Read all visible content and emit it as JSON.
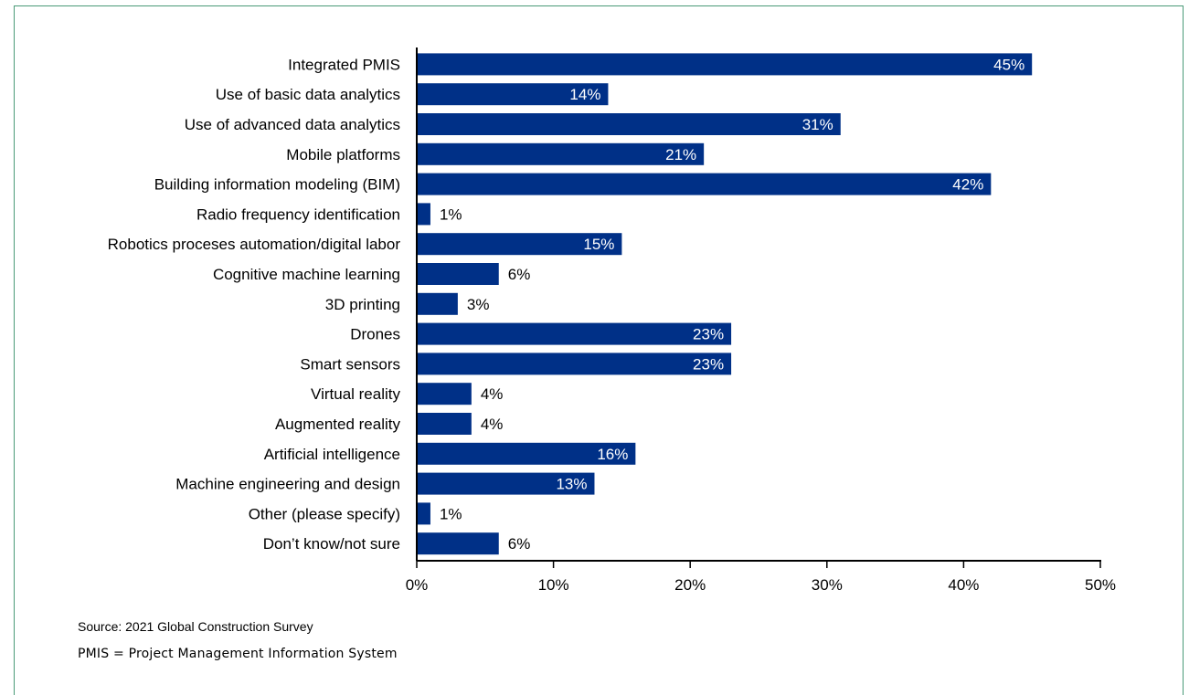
{
  "chart_data": {
    "type": "bar",
    "orientation": "horizontal",
    "categories": [
      "Integrated PMIS",
      "Use of basic data analytics",
      "Use of advanced data analytics",
      "Mobile platforms",
      "Building information modeling (BIM)",
      "Radio frequency identification",
      "Robotics proceses automation/digital labor",
      "Cognitive machine learning",
      "3D printing",
      "Drones",
      "Smart sensors",
      "Virtual reality",
      "Augmented reality",
      "Artificial intelligence",
      "Machine engineering and design",
      "Other (please specify)",
      "Don’t know/not sure"
    ],
    "values": [
      45,
      14,
      31,
      21,
      42,
      1,
      15,
      6,
      3,
      23,
      23,
      4,
      4,
      16,
      13,
      1,
      6
    ],
    "value_labels": [
      "45%",
      "14%",
      "31%",
      "21%",
      "42%",
      "1%",
      "15%",
      "6%",
      "3%",
      "23%",
      "23%",
      "4%",
      "4%",
      "16%",
      "13%",
      "1%",
      "6%"
    ],
    "xlim": [
      0,
      50
    ],
    "xticks": [
      0,
      10,
      20,
      30,
      40,
      50
    ],
    "xtick_labels": [
      "0%",
      "10%",
      "20%",
      "30%",
      "40%",
      "50%"
    ],
    "grid": false,
    "legend": "none",
    "colors": {
      "bar": "#003087",
      "label_inside": "#ffffff",
      "label_outside": "#000000",
      "axis": "#000000",
      "frame": "#4a9a78"
    }
  },
  "notes": {
    "source": "Source: 2021 Global Construction Survey",
    "abbreviation": "PMIS = Project Management Information System"
  }
}
